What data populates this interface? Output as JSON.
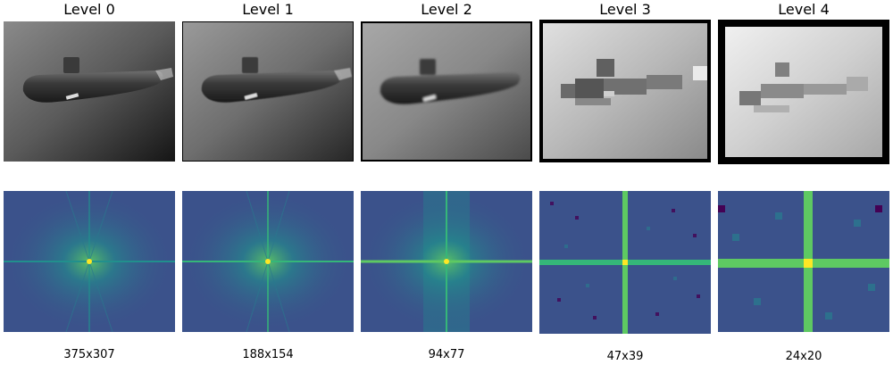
{
  "levels": [
    {
      "title": "Level 0",
      "size": "375x307"
    },
    {
      "title": "Level 1",
      "size": "188x154"
    },
    {
      "title": "Level 2",
      "size": "94x77"
    },
    {
      "title": "Level 3",
      "size": "47x39"
    },
    {
      "title": "Level 4",
      "size": "24x20"
    }
  ],
  "colors": {
    "fft_background": "#3b528b",
    "fft_mid": "#21908d",
    "fft_bright": "#5ec962",
    "fft_peak": "#fde725",
    "fft_low": "#440154",
    "border": "#000000"
  },
  "image_subject": "submarine-grayscale-photo",
  "spectrum_style": "log-magnitude-fft-viridis"
}
